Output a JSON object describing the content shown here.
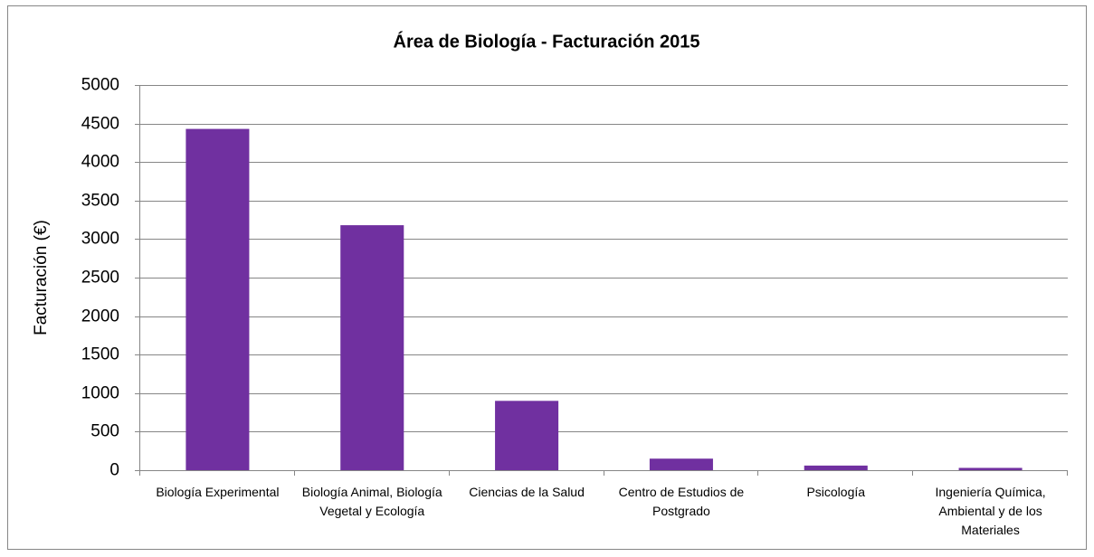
{
  "chart_data": {
    "type": "bar",
    "title": "Área de Biología - Facturación 2015",
    "y_label": "Facturación (€)",
    "categories": [
      "Biología Experimental",
      "Biología Animal, Biología Vegetal y Ecología",
      "Ciencias de la Salud",
      "Centro de Estudios de Postgrado",
      "Psicología",
      "Ingeniería Química, Ambiental y de los Materiales"
    ],
    "values": [
      4430,
      3180,
      900,
      150,
      60,
      30
    ],
    "color": "#7030a0",
    "ylim": [
      0,
      5000
    ],
    "yticks": [
      0,
      500,
      1000,
      1500,
      2000,
      2500,
      3000,
      3500,
      4000,
      4500,
      5000
    ],
    "grid": true
  }
}
